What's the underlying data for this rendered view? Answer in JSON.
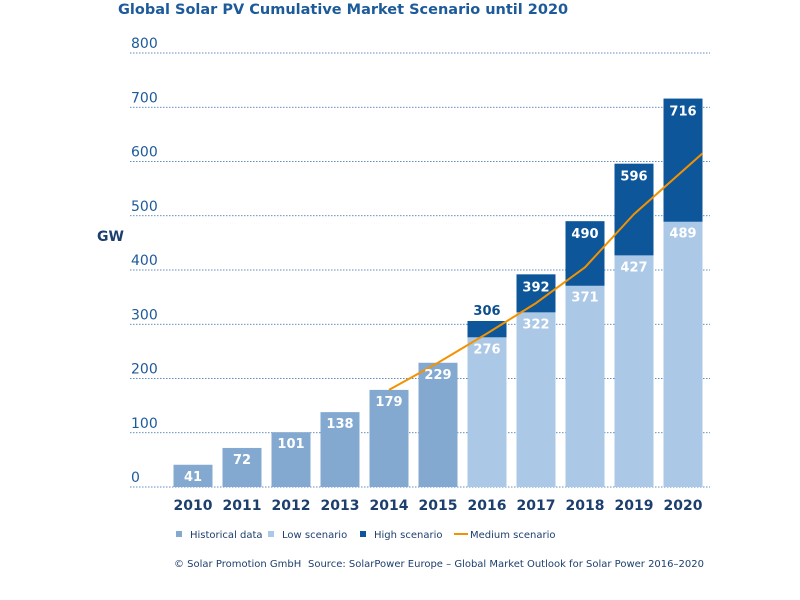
{
  "chart_data": {
    "type": "bar",
    "title": "Global Solar PV Cumulative Market Scenario until 2020",
    "ylabel": "GW",
    "xlabel": "",
    "ylim": [
      0,
      800
    ],
    "yticks": [
      0,
      100,
      200,
      300,
      400,
      500,
      600,
      700,
      800
    ],
    "grid": true,
    "legend_position": "bottom",
    "categories": [
      "2010",
      "2011",
      "2012",
      "2013",
      "2014",
      "2015",
      "2016",
      "2017",
      "2018",
      "2019",
      "2020"
    ],
    "series": [
      {
        "name": "Historical data",
        "kind": "bar",
        "color": "#84a9d1",
        "values": [
          41,
          72,
          101,
          138,
          179,
          229,
          null,
          null,
          null,
          null,
          null
        ]
      },
      {
        "name": "Low scenario",
        "kind": "bar",
        "color": "#abc8e6",
        "values": [
          null,
          null,
          null,
          null,
          null,
          null,
          276,
          322,
          371,
          427,
          489
        ]
      },
      {
        "name": "High scenario",
        "kind": "bar",
        "color": "#0d5699",
        "values": [
          null,
          null,
          null,
          null,
          null,
          null,
          306,
          392,
          490,
          596,
          716
        ]
      },
      {
        "name": "Medium scenario",
        "kind": "line",
        "color": "#f39200",
        "x": [
          "2014",
          "2015",
          "2016",
          "2017",
          "2018",
          "2019",
          "2020"
        ],
        "values": [
          179,
          229,
          283,
          339,
          405,
          503,
          615
        ]
      }
    ]
  },
  "footer": {
    "copyright": "© Solar Promotion GmbH",
    "source": "Source: SolarPower Europe – Global Market Outlook for Solar Power 2016–2020"
  }
}
